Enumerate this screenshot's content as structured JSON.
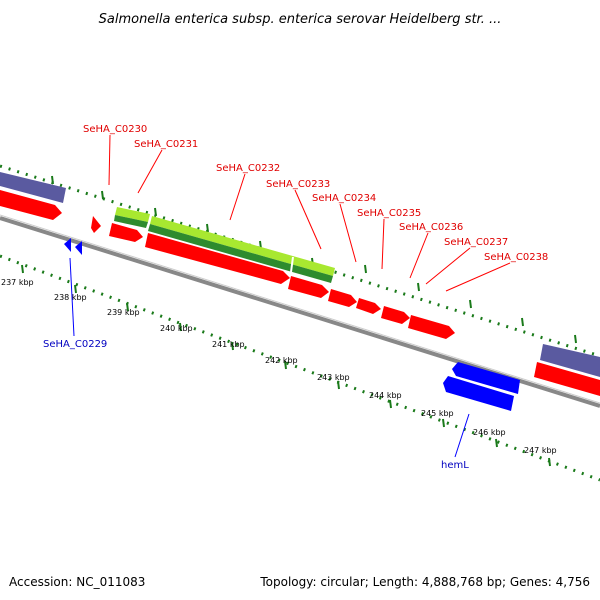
{
  "title": "Salmonella enterica subsp. enterica serovar Heidelberg str. ...",
  "accession": "Accession: NC_011083",
  "summary": "Topology: circular; Length: 4,888,768 bp; Genes: 4,756",
  "colors": {
    "forward_cds": "#ff0000",
    "reverse_cds": "#0000ff",
    "rna": "#5a5aa0",
    "feature_light": "#a8e830",
    "feature_dark": "#2e8b2e",
    "backbone": "#888888",
    "gc_dots": "#1a7a1a",
    "label_forward": "#e00000",
    "label_reverse": "#0000c0"
  },
  "ticks": [
    "237 kbp",
    "238 kbp",
    "239 kbp",
    "240 kbp",
    "241 kbp",
    "242 kbp",
    "243 kbp",
    "244 kbp",
    "245 kbp",
    "246 kbp",
    "247 kbp"
  ],
  "genes_forward": [
    "SeHA_C0230",
    "SeHA_C0231",
    "SeHA_C0232",
    "SeHA_C0233",
    "SeHA_C0234",
    "SeHA_C0235",
    "SeHA_C0236",
    "SeHA_C0237",
    "SeHA_C0238"
  ],
  "genes_reverse": [
    "SeHA_C0229",
    "hemL"
  ]
}
